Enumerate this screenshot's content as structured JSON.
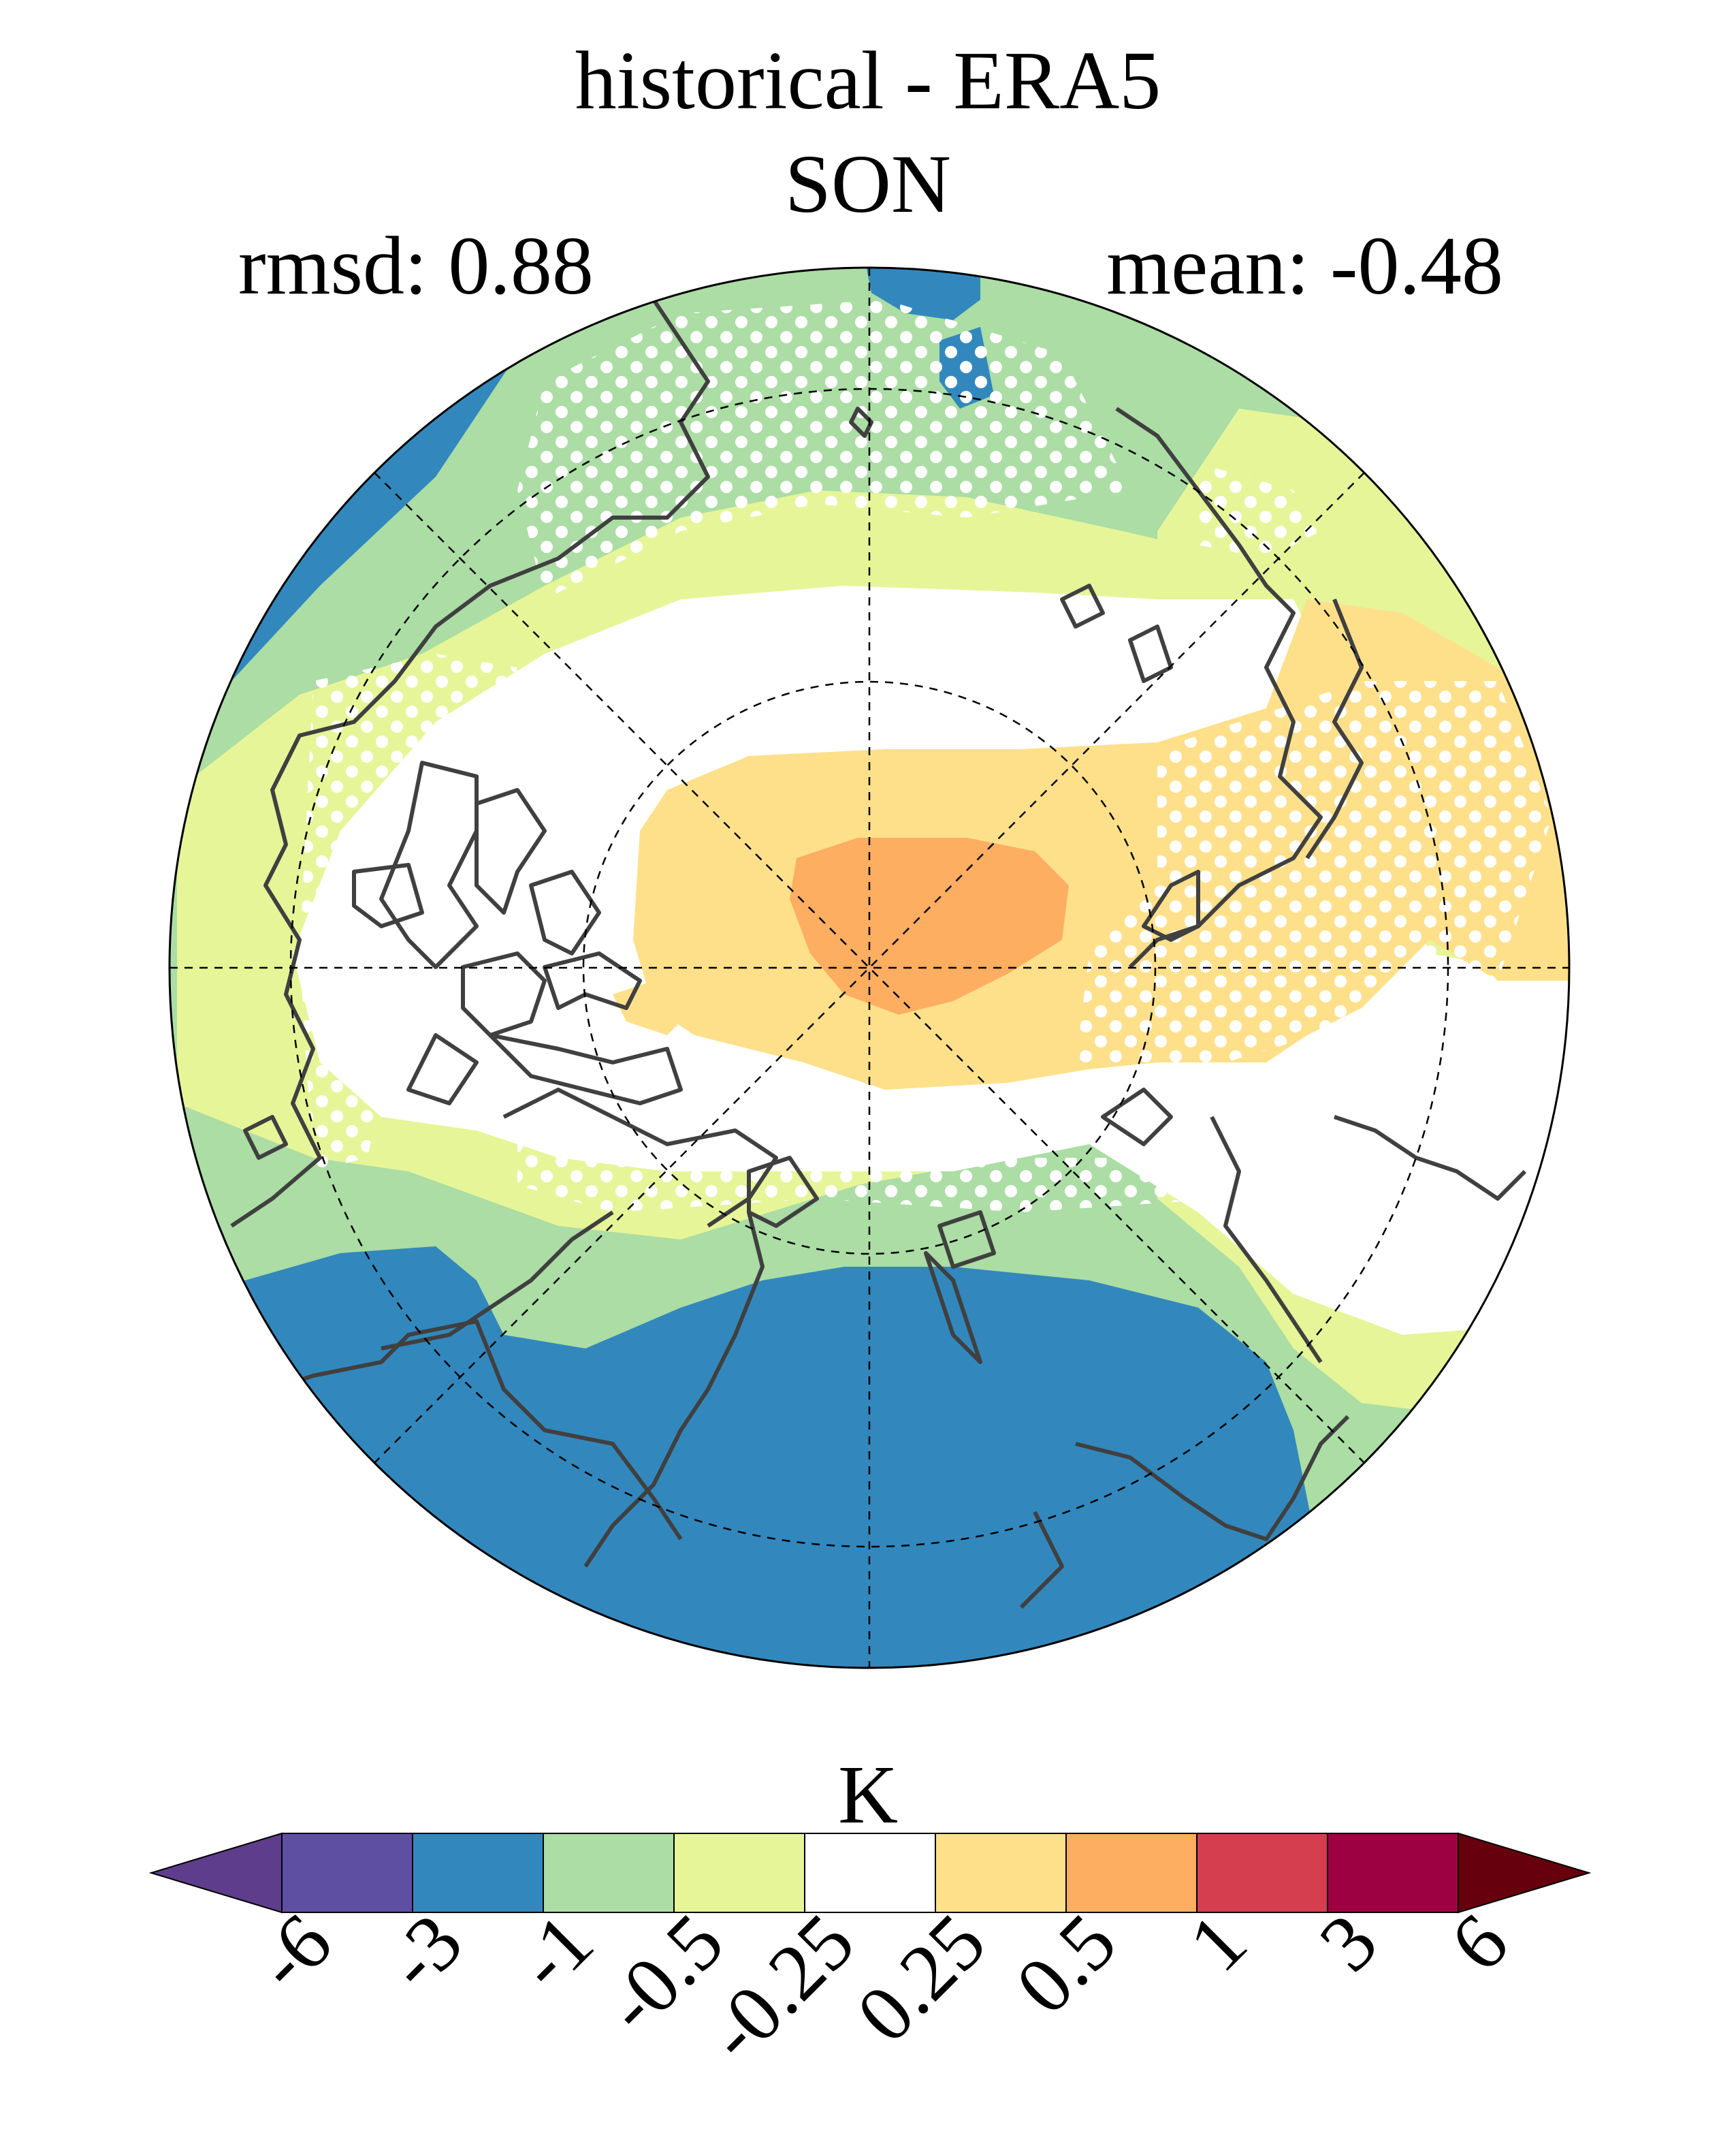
{
  "title": "historical - ERA5",
  "subtitle": "SON",
  "stats": {
    "rmsd": "rmsd: 0.88",
    "mean": "mean: -0.48"
  },
  "colorbar": {
    "unit": "K",
    "ticks": [
      "-6",
      "-3",
      "-1",
      "-0.5",
      "-0.25",
      "0.25",
      "0.5",
      "1",
      "3",
      "6"
    ],
    "colors": [
      "#5e4fa2",
      "#3288bd",
      "#abdda4",
      "#e6f598",
      "#ffffff",
      "#fee08b",
      "#fdae61",
      "#d53e4f",
      "#9e0142"
    ],
    "under_color": "#5e3d8c",
    "over_color": "#67000d"
  },
  "map": {
    "projection": "north polar stereographic",
    "coastline_color": "#404040",
    "stippling_color": "#ffffff",
    "grid_style": "dashed"
  }
}
